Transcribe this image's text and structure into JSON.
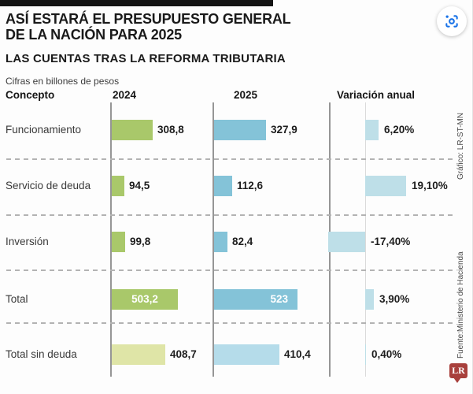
{
  "page": {
    "title_line1": "ASÍ ESTARÁ EL PRESUPUESTO GENERAL",
    "title_line2": "DE LA NACIÓN PARA 2025",
    "subtitle": "LAS CUENTAS TRAS LA REFORMA TRIBUTARIA",
    "units_note": "Cifras en billones de pesos",
    "credit_graphic": "Gráfico: LR-ST-MN",
    "credit_source": "Fuente:Ministerio de Hacienda",
    "logo_text": "LR"
  },
  "table_headers": {
    "concept": "Concepto",
    "col_2024": "2024",
    "col_2025": "2025",
    "col_variation": "Variación anual"
  },
  "icons": {
    "lens_button": "image-search-lens-icon"
  },
  "colors": {
    "green_2024": "#a9c86a",
    "green_2024_muted": "#dfe5a7",
    "blue_2025": "#84c3d8",
    "blue_2025_muted": "#b5dcea",
    "variation_blue": "#bedfe8",
    "logo_red": "#a8403c",
    "lens_blue": "#1a73e8",
    "axis_gray": "#969696"
  },
  "chart_data": {
    "type": "bar",
    "orientation": "horizontal",
    "unit": "billones de pesos",
    "title": "ASÍ ESTARÁ EL PRESUPUESTO GENERAL DE LA NACIÓN PARA 2025",
    "subtitle": "LAS CUENTAS TRAS LA REFORMA TRIBUTARIA",
    "categories": [
      "Funcionamiento",
      "Servicio de deuda",
      "Inversión",
      "Total",
      "Total sin deuda"
    ],
    "series": [
      {
        "name": "2024",
        "values": [
          308.8,
          94.5,
          99.8,
          503.2,
          408.7
        ],
        "display": [
          "308,8",
          "94,5",
          "99,8",
          "503,2",
          "408,7"
        ]
      },
      {
        "name": "2025",
        "values": [
          327.9,
          112.6,
          82.4,
          523,
          410.4
        ],
        "display": [
          "327,9",
          "112,6",
          "82,4",
          "523",
          "410,4"
        ]
      },
      {
        "name": "Variación anual",
        "unit": "%",
        "values": [
          6.2,
          19.1,
          -17.4,
          3.9,
          0.4
        ],
        "display": [
          "6,20%",
          "19,10%",
          "-17,40%",
          "3,90%",
          "0,40%"
        ]
      }
    ],
    "notes": "Row 'Total' shows value labels inside bars; row 'Total sin deuda' uses muted colors; negative variation bars extend left of the zero axis"
  }
}
